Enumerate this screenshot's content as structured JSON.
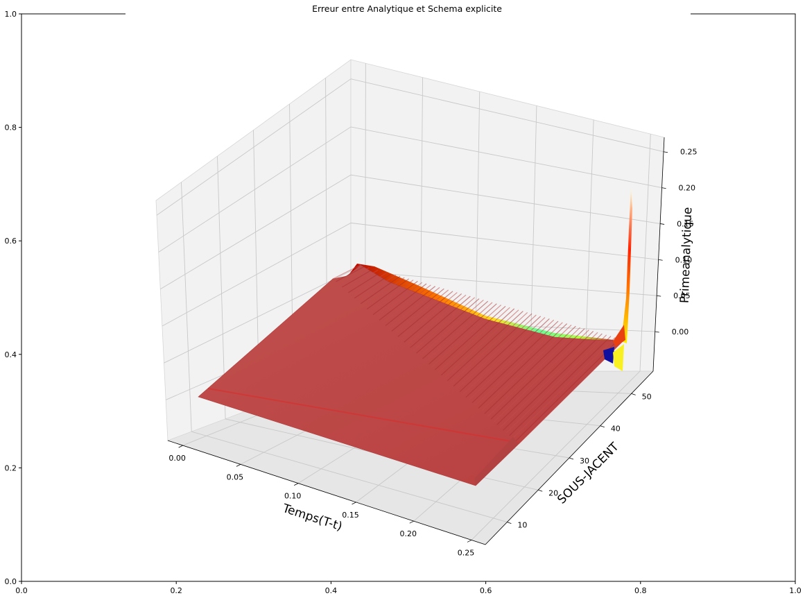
{
  "chart_data": {
    "type": "surface3d",
    "title": "Erreur entre Analytique et Schema explicite",
    "outer_axes": {
      "xticks": [
        "0.0",
        "0.2",
        "0.4",
        "0.6",
        "0.8",
        "1.0"
      ],
      "yticks": [
        "0.0",
        "0.2",
        "0.4",
        "0.6",
        "0.8",
        "1.0"
      ],
      "xlim": [
        0,
        1
      ],
      "ylim": [
        0,
        1
      ]
    },
    "xlabel": "Temps(T-t)",
    "ylabel": "SOUS-JACENT",
    "zlabel": "Primeanalytique",
    "xticks": [
      "0.00",
      "0.05",
      "0.10",
      "0.15",
      "0.20",
      "0.25"
    ],
    "yticks": [
      "10",
      "20",
      "30",
      "40",
      "50"
    ],
    "zticks": [
      "0.00",
      "0.05",
      "0.10",
      "0.15",
      "0.20",
      "0.25"
    ],
    "xlim": [
      -0.013,
      0.262
    ],
    "ylim": [
      3,
      57
    ],
    "zlim": [
      -0.055,
      0.27
    ],
    "colormap": "jet",
    "grid": true,
    "surface_summary": {
      "flat_level": 0.0,
      "ridge_near_t0_max": 0.06,
      "spike_max": 0.26,
      "spike_min": -0.04
    }
  }
}
